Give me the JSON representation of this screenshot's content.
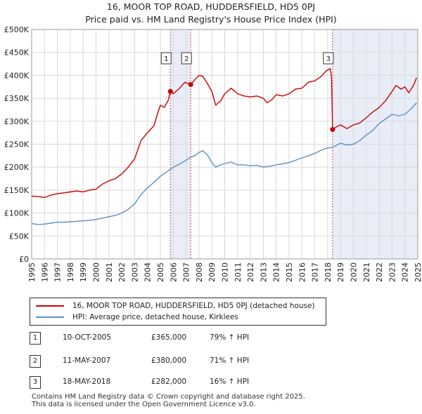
{
  "header": {
    "title_line1": "16, MOOR TOP ROAD, HUDDERSFIELD, HD5 0PJ",
    "title_line2": "Price paid vs. HM Land Registry's House Price Index (HPI)"
  },
  "chart_data": {
    "type": "line",
    "x_range": [
      1995,
      2025
    ],
    "y_range": [
      0,
      500000
    ],
    "y_ticks": [
      {
        "value": 0,
        "label": "£0"
      },
      {
        "value": 50000,
        "label": "£50K"
      },
      {
        "value": 100000,
        "label": "£100K"
      },
      {
        "value": 150000,
        "label": "£150K"
      },
      {
        "value": 200000,
        "label": "£200K"
      },
      {
        "value": 250000,
        "label": "£250K"
      },
      {
        "value": 300000,
        "label": "£300K"
      },
      {
        "value": 350000,
        "label": "£350K"
      },
      {
        "value": 400000,
        "label": "£400K"
      },
      {
        "value": 450000,
        "label": "£450K"
      },
      {
        "value": 500000,
        "label": "£500K"
      }
    ],
    "x_ticks": [
      "1995",
      "1996",
      "1997",
      "1998",
      "1999",
      "2000",
      "2001",
      "2002",
      "2003",
      "2004",
      "2005",
      "2006",
      "2007",
      "2008",
      "2009",
      "2010",
      "2011",
      "2012",
      "2013",
      "2014",
      "2015",
      "2016",
      "2017",
      "2018",
      "2019",
      "2020",
      "2021",
      "2022",
      "2023",
      "2024",
      "2025"
    ],
    "series": [
      {
        "name": "16, MOOR TOP ROAD, HUDDERSFIELD, HD5 0PJ (detached house)",
        "color": "#cc0000",
        "points": [
          [
            1995.0,
            137000
          ],
          [
            1995.5,
            136000
          ],
          [
            1996.0,
            134000
          ],
          [
            1996.5,
            139000
          ],
          [
            1997.0,
            142000
          ],
          [
            1997.5,
            144000
          ],
          [
            1998.0,
            146000
          ],
          [
            1998.5,
            148000
          ],
          [
            1999.0,
            146000
          ],
          [
            1999.5,
            150000
          ],
          [
            2000.0,
            152000
          ],
          [
            2000.5,
            163000
          ],
          [
            2001.0,
            170000
          ],
          [
            2001.5,
            175000
          ],
          [
            2002.0,
            185000
          ],
          [
            2002.5,
            200000
          ],
          [
            2003.0,
            218000
          ],
          [
            2003.5,
            258000
          ],
          [
            2004.0,
            275000
          ],
          [
            2004.5,
            290000
          ],
          [
            2004.8,
            318000
          ],
          [
            2005.0,
            335000
          ],
          [
            2005.3,
            330000
          ],
          [
            2005.6,
            345000
          ],
          [
            2005.78,
            365000
          ],
          [
            2006.0,
            360000
          ],
          [
            2006.5,
            372000
          ],
          [
            2006.9,
            385000
          ],
          [
            2007.36,
            380000
          ],
          [
            2007.6,
            388000
          ],
          [
            2008.0,
            400000
          ],
          [
            2008.3,
            398000
          ],
          [
            2008.7,
            380000
          ],
          [
            2009.0,
            365000
          ],
          [
            2009.3,
            335000
          ],
          [
            2009.7,
            345000
          ],
          [
            2010.0,
            360000
          ],
          [
            2010.5,
            372000
          ],
          [
            2011.0,
            360000
          ],
          [
            2011.5,
            355000
          ],
          [
            2012.0,
            353000
          ],
          [
            2012.5,
            355000
          ],
          [
            2013.0,
            350000
          ],
          [
            2013.3,
            340000
          ],
          [
            2013.7,
            348000
          ],
          [
            2014.0,
            358000
          ],
          [
            2014.5,
            355000
          ],
          [
            2015.0,
            360000
          ],
          [
            2015.5,
            370000
          ],
          [
            2016.0,
            372000
          ],
          [
            2016.5,
            385000
          ],
          [
            2017.0,
            388000
          ],
          [
            2017.5,
            398000
          ],
          [
            2017.9,
            410000
          ],
          [
            2018.2,
            415000
          ],
          [
            2018.3,
            395000
          ],
          [
            2018.38,
            282000
          ],
          [
            2018.7,
            288000
          ],
          [
            2019.0,
            292000
          ],
          [
            2019.5,
            284000
          ],
          [
            2020.0,
            292000
          ],
          [
            2020.5,
            296000
          ],
          [
            2021.0,
            308000
          ],
          [
            2021.5,
            320000
          ],
          [
            2022.0,
            330000
          ],
          [
            2022.5,
            345000
          ],
          [
            2023.0,
            365000
          ],
          [
            2023.3,
            378000
          ],
          [
            2023.7,
            370000
          ],
          [
            2024.0,
            375000
          ],
          [
            2024.3,
            362000
          ],
          [
            2024.7,
            380000
          ],
          [
            2024.9,
            395000
          ]
        ]
      },
      {
        "name": "HPI: Average price, detached house, Kirklees",
        "color": "#5b8fc7",
        "points": [
          [
            1995.0,
            77000
          ],
          [
            1995.5,
            75000
          ],
          [
            1996.0,
            76000
          ],
          [
            1996.5,
            78000
          ],
          [
            1997.0,
            80000
          ],
          [
            1997.5,
            80000
          ],
          [
            1998.0,
            81000
          ],
          [
            1998.5,
            82000
          ],
          [
            1999.0,
            83000
          ],
          [
            1999.5,
            84000
          ],
          [
            2000.0,
            86000
          ],
          [
            2000.5,
            89000
          ],
          [
            2001.0,
            92000
          ],
          [
            2001.5,
            95000
          ],
          [
            2002.0,
            100000
          ],
          [
            2002.5,
            108000
          ],
          [
            2003.0,
            120000
          ],
          [
            2003.5,
            140000
          ],
          [
            2004.0,
            155000
          ],
          [
            2004.5,
            167000
          ],
          [
            2005.0,
            180000
          ],
          [
            2005.5,
            190000
          ],
          [
            2005.78,
            195000
          ],
          [
            2006.0,
            200000
          ],
          [
            2006.5,
            207000
          ],
          [
            2007.0,
            215000
          ],
          [
            2007.36,
            222000
          ],
          [
            2007.7,
            225000
          ],
          [
            2008.0,
            232000
          ],
          [
            2008.3,
            236000
          ],
          [
            2008.7,
            225000
          ],
          [
            2009.0,
            210000
          ],
          [
            2009.3,
            200000
          ],
          [
            2009.7,
            205000
          ],
          [
            2010.0,
            208000
          ],
          [
            2010.5,
            211000
          ],
          [
            2011.0,
            205000
          ],
          [
            2011.5,
            205000
          ],
          [
            2012.0,
            203000
          ],
          [
            2012.5,
            204000
          ],
          [
            2013.0,
            200000
          ],
          [
            2013.5,
            202000
          ],
          [
            2014.0,
            205000
          ],
          [
            2014.5,
            207000
          ],
          [
            2015.0,
            210000
          ],
          [
            2015.5,
            215000
          ],
          [
            2016.0,
            220000
          ],
          [
            2016.5,
            225000
          ],
          [
            2017.0,
            230000
          ],
          [
            2017.5,
            237000
          ],
          [
            2018.0,
            242000
          ],
          [
            2018.38,
            243000
          ],
          [
            2018.7,
            248000
          ],
          [
            2019.0,
            252000
          ],
          [
            2019.5,
            248000
          ],
          [
            2020.0,
            250000
          ],
          [
            2020.5,
            258000
          ],
          [
            2021.0,
            270000
          ],
          [
            2021.5,
            280000
          ],
          [
            2022.0,
            295000
          ],
          [
            2022.5,
            305000
          ],
          [
            2023.0,
            315000
          ],
          [
            2023.5,
            312000
          ],
          [
            2024.0,
            315000
          ],
          [
            2024.5,
            328000
          ],
          [
            2024.9,
            340000
          ]
        ]
      }
    ],
    "sales": [
      {
        "id": "1",
        "x": 2005.78,
        "price": 365000
      },
      {
        "id": "2",
        "x": 2007.36,
        "price": 380000
      },
      {
        "id": "3",
        "x": 2018.38,
        "price": 282000
      }
    ],
    "shaded_periods": [
      [
        2005.78,
        2007.36
      ],
      [
        2018.38,
        2025.0
      ]
    ]
  },
  "legend": {
    "property_label": "16, MOOR TOP ROAD, HUDDERSFIELD, HD5 0PJ (detached house)",
    "hpi_label": "HPI: Average price, detached house, Kirklees",
    "property_color": "#cc0000",
    "hpi_color": "#5b8fc7"
  },
  "sales_table": [
    {
      "id": "1",
      "date": "10-OCT-2005",
      "price": "£365,000",
      "hpi": "79% ↑ HPI"
    },
    {
      "id": "2",
      "date": "11-MAY-2007",
      "price": "£380,000",
      "hpi": "71% ↑ HPI"
    },
    {
      "id": "3",
      "date": "18-MAY-2018",
      "price": "£282,000",
      "hpi": "16% ↑ HPI"
    }
  ],
  "footer": {
    "line1": "Contains HM Land Registry data © Crown copyright and database right 2025.",
    "line2": "This data is licensed under the Open Government Licence v3.0."
  }
}
